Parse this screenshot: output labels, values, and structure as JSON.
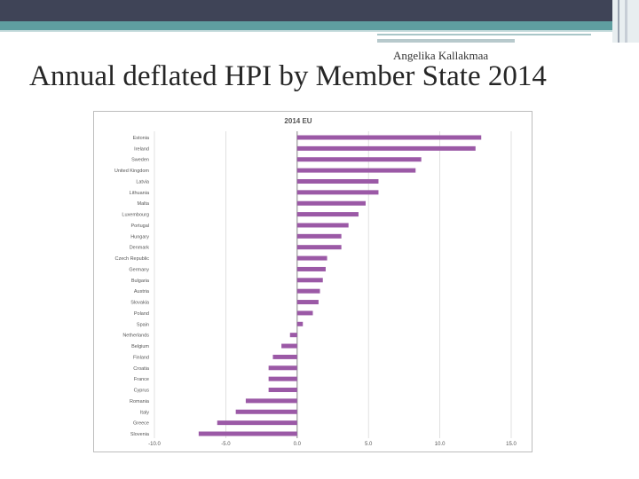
{
  "slide": {
    "author": "Angelika Kallakmaa",
    "title": "Annual deflated HPI by Member State 2014"
  },
  "colors": {
    "bar": "#9b59a6",
    "grid": "#d9d9d9",
    "axis": "#9a9a9a"
  },
  "chart_data": {
    "type": "bar",
    "orientation": "horizontal",
    "title": "2014 EU",
    "xlim": [
      -10,
      15
    ],
    "xticks": [
      "-10.0",
      "-5.0",
      "0.0",
      "5.0",
      "10.0",
      "15.0"
    ],
    "grid": true,
    "categories": [
      "Estonia",
      "Ireland",
      "Sweden",
      "United Kingdom",
      "Latvia",
      "Lithuania",
      "Malta",
      "Luxembourg",
      "Portugal",
      "Hungary",
      "Denmark",
      "Czech Republic",
      "Germany",
      "Bulgaria",
      "Austria",
      "Slovakia",
      "Poland",
      "Spain",
      "Netherlands",
      "Belgium",
      "Finland",
      "Croatia",
      "France",
      "Cyprus",
      "Romania",
      "Italy",
      "Greece",
      "Slovenia"
    ],
    "values": [
      12.9,
      12.5,
      8.7,
      8.3,
      5.7,
      5.7,
      4.8,
      4.3,
      3.6,
      3.1,
      3.1,
      2.1,
      2.0,
      1.8,
      1.6,
      1.5,
      1.1,
      0.4,
      -0.5,
      -1.1,
      -1.7,
      -2.0,
      -2.0,
      -2.0,
      -3.6,
      -4.3,
      -5.6,
      -6.9
    ]
  }
}
